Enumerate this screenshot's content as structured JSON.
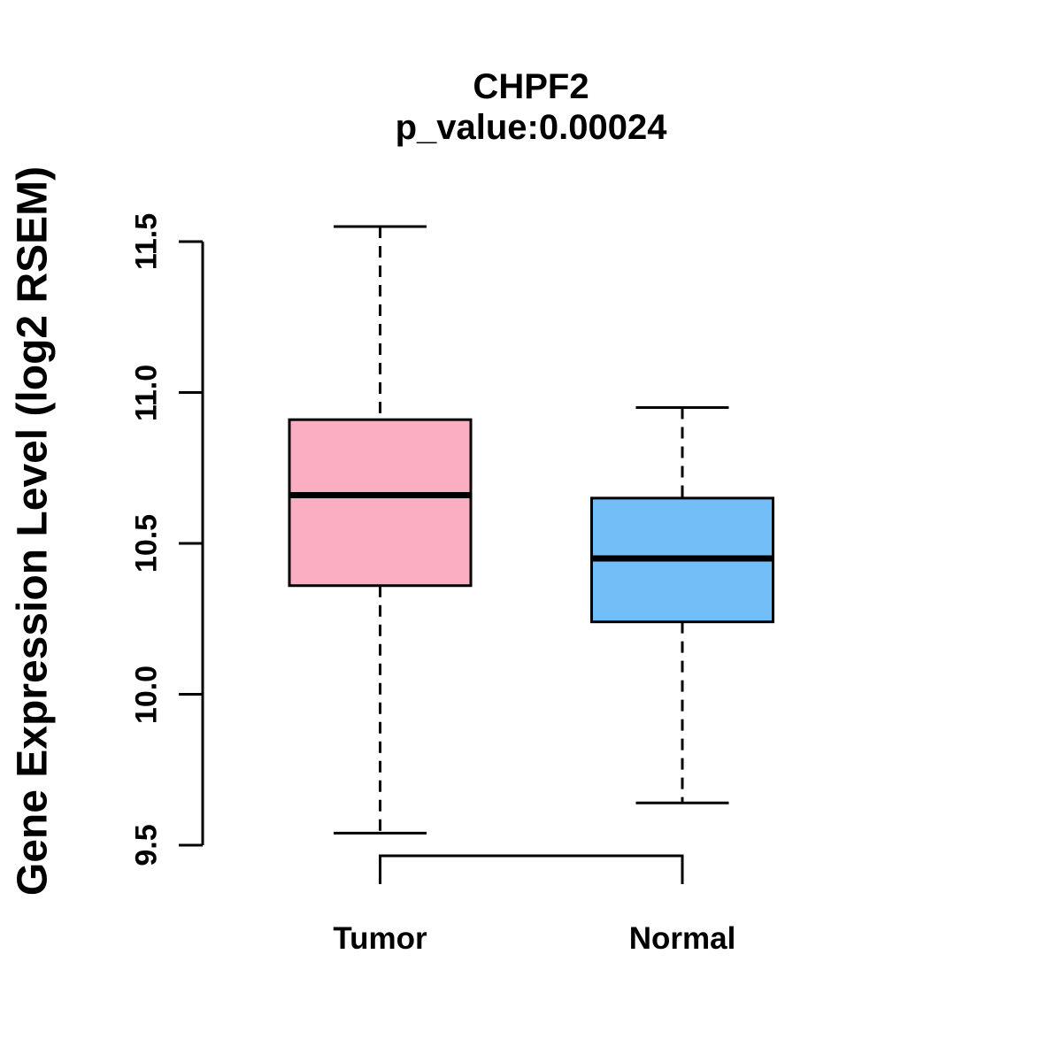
{
  "figure": {
    "title": "CHPF2",
    "subtitle": "p_value:0.00024"
  },
  "chart_data": {
    "type": "boxplot",
    "title": "CHPF2",
    "subtitle": "p_value:0.00024",
    "xlabel": "",
    "ylabel": "Gene Expression Level (log2 RSEM)",
    "ylim": [
      9.5,
      11.5
    ],
    "yticks": [
      9.5,
      10.0,
      10.5,
      11.0,
      11.5
    ],
    "ytick_labels": [
      "9.5",
      "10.0",
      "10.5",
      "11.0",
      "11.5"
    ],
    "grid": false,
    "legend": "none",
    "categories": [
      "Tumor",
      "Normal"
    ],
    "series": [
      {
        "name": "Tumor",
        "fill": "#FBAEC2",
        "lower_whisker": 9.54,
        "q1": 10.36,
        "median": 10.66,
        "q3": 10.91,
        "upper_whisker": 11.55
      },
      {
        "name": "Normal",
        "fill": "#74BEF8",
        "lower_whisker": 9.64,
        "q1": 10.24,
        "median": 10.45,
        "q3": 10.65,
        "upper_whisker": 10.95
      }
    ],
    "colors": {
      "stroke": "#000000",
      "background": "#FFFFFF",
      "tumor_fill": "#FBAEC2",
      "normal_fill": "#74BEF8"
    }
  }
}
